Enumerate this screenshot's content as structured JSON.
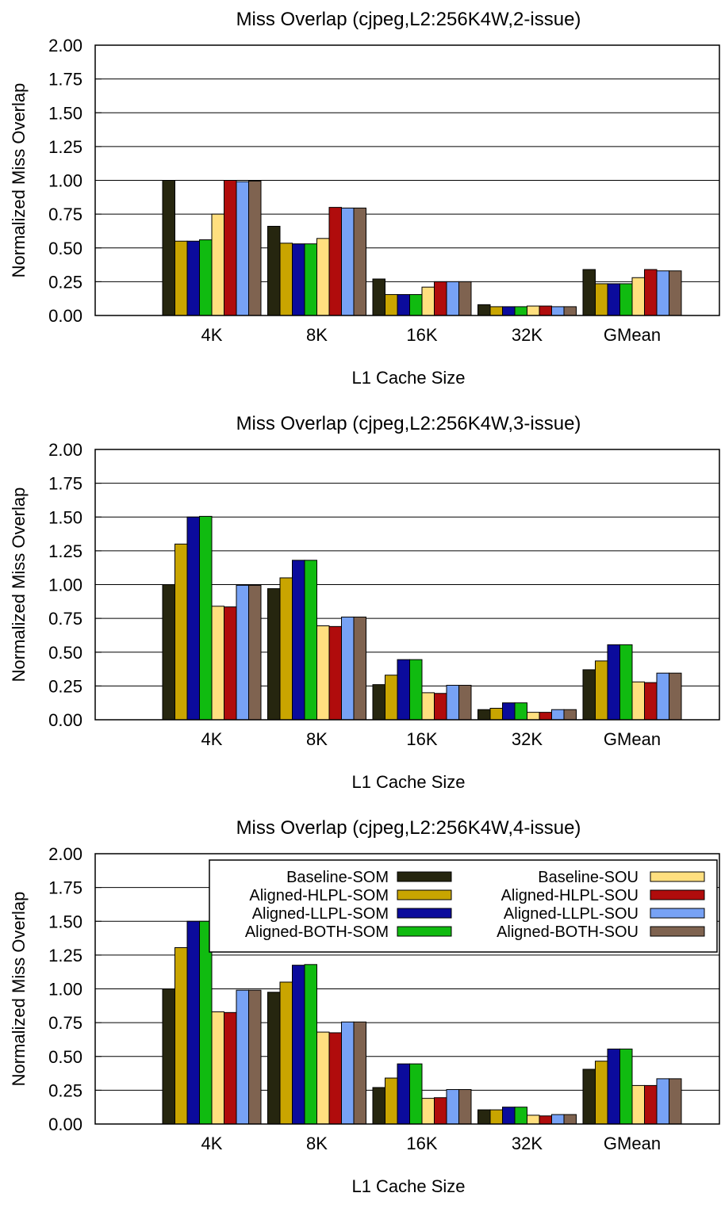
{
  "legend_entries": [
    "Baseline-SOM",
    "Aligned-HLPL-SOM",
    "Aligned-LLPL-SOM",
    "Aligned-BOTH-SOM",
    "Baseline-SOU",
    "Aligned-HLPL-SOU",
    "Aligned-LLPL-SOU",
    "Aligned-BOTH-SOU"
  ],
  "series_colors": [
    "#26260f",
    "#c9a500",
    "#0b0b9c",
    "#10bb10",
    "#ffdf7f",
    "#b00c0c",
    "#77a2f5",
    "#7f6350"
  ],
  "chart_data": [
    {
      "type": "bar",
      "title": "Miss Overlap (cjpeg,L2:256K4W,2-issue)",
      "xlabel": "L1 Cache Size",
      "ylabel": "Normalized Miss Overlap",
      "ylim": [
        0,
        2
      ],
      "yticks": [
        "0.00",
        "0.25",
        "0.50",
        "0.75",
        "1.00",
        "1.25",
        "1.50",
        "1.75",
        "2.00"
      ],
      "grid": true,
      "legend": "none",
      "categories": [
        "4K",
        "8K",
        "16K",
        "32K",
        "GMean"
      ],
      "series": [
        {
          "name": "Baseline-SOM",
          "values": [
            1.0,
            0.66,
            0.27,
            0.08,
            0.34
          ]
        },
        {
          "name": "Aligned-HLPL-SOM",
          "values": [
            0.55,
            0.535,
            0.155,
            0.065,
            0.235
          ]
        },
        {
          "name": "Aligned-LLPL-SOM",
          "values": [
            0.55,
            0.53,
            0.155,
            0.065,
            0.235
          ]
        },
        {
          "name": "Aligned-BOTH-SOM",
          "values": [
            0.56,
            0.53,
            0.155,
            0.065,
            0.235
          ]
        },
        {
          "name": "Baseline-SOU",
          "values": [
            0.75,
            0.57,
            0.21,
            0.07,
            0.28
          ]
        },
        {
          "name": "Aligned-HLPL-SOU",
          "values": [
            1.0,
            0.8,
            0.25,
            0.07,
            0.34
          ]
        },
        {
          "name": "Aligned-LLPL-SOU",
          "values": [
            0.99,
            0.795,
            0.25,
            0.065,
            0.33
          ]
        },
        {
          "name": "Aligned-BOTH-SOU",
          "values": [
            0.995,
            0.795,
            0.25,
            0.065,
            0.33
          ]
        }
      ]
    },
    {
      "type": "bar",
      "title": "Miss Overlap (cjpeg,L2:256K4W,3-issue)",
      "xlabel": "L1 Cache Size",
      "ylabel": "Normalized Miss Overlap",
      "ylim": [
        0,
        2
      ],
      "yticks": [
        "0.00",
        "0.25",
        "0.50",
        "0.75",
        "1.00",
        "1.25",
        "1.50",
        "1.75",
        "2.00"
      ],
      "grid": true,
      "legend": "none",
      "categories": [
        "4K",
        "8K",
        "16K",
        "32K",
        "GMean"
      ],
      "series": [
        {
          "name": "Baseline-SOM",
          "values": [
            1.0,
            0.97,
            0.26,
            0.075,
            0.37
          ]
        },
        {
          "name": "Aligned-HLPL-SOM",
          "values": [
            1.3,
            1.05,
            0.33,
            0.085,
            0.435
          ]
        },
        {
          "name": "Aligned-LLPL-SOM",
          "values": [
            1.5,
            1.18,
            0.445,
            0.125,
            0.555
          ]
        },
        {
          "name": "Aligned-BOTH-SOM",
          "values": [
            1.505,
            1.18,
            0.445,
            0.125,
            0.555
          ]
        },
        {
          "name": "Baseline-SOU",
          "values": [
            0.84,
            0.695,
            0.2,
            0.055,
            0.28
          ]
        },
        {
          "name": "Aligned-HLPL-SOU",
          "values": [
            0.835,
            0.69,
            0.195,
            0.055,
            0.275
          ]
        },
        {
          "name": "Aligned-LLPL-SOU",
          "values": [
            0.995,
            0.76,
            0.255,
            0.075,
            0.345
          ]
        },
        {
          "name": "Aligned-BOTH-SOU",
          "values": [
            0.995,
            0.76,
            0.255,
            0.075,
            0.345
          ]
        }
      ]
    },
    {
      "type": "bar",
      "title": "Miss Overlap (cjpeg,L2:256K4W,4-issue)",
      "xlabel": "L1 Cache Size",
      "ylabel": "Normalized Miss Overlap",
      "ylim": [
        0,
        2
      ],
      "yticks": [
        "0.00",
        "0.25",
        "0.50",
        "0.75",
        "1.00",
        "1.25",
        "1.50",
        "1.75",
        "2.00"
      ],
      "grid": true,
      "legend": "top-right",
      "categories": [
        "4K",
        "8K",
        "16K",
        "32K",
        "GMean"
      ],
      "series": [
        {
          "name": "Baseline-SOM",
          "values": [
            1.0,
            0.975,
            0.27,
            0.105,
            0.405
          ]
        },
        {
          "name": "Aligned-HLPL-SOM",
          "values": [
            1.305,
            1.05,
            0.34,
            0.105,
            0.465
          ]
        },
        {
          "name": "Aligned-LLPL-SOM",
          "values": [
            1.5,
            1.175,
            0.445,
            0.125,
            0.555
          ]
        },
        {
          "name": "Aligned-BOTH-SOM",
          "values": [
            1.5,
            1.18,
            0.445,
            0.125,
            0.555
          ]
        },
        {
          "name": "Baseline-SOU",
          "values": [
            0.83,
            0.68,
            0.19,
            0.065,
            0.285
          ]
        },
        {
          "name": "Aligned-HLPL-SOU",
          "values": [
            0.825,
            0.675,
            0.195,
            0.06,
            0.285
          ]
        },
        {
          "name": "Aligned-LLPL-SOU",
          "values": [
            0.99,
            0.755,
            0.255,
            0.07,
            0.335
          ]
        },
        {
          "name": "Aligned-BOTH-SOU",
          "values": [
            0.99,
            0.755,
            0.255,
            0.07,
            0.335
          ]
        }
      ]
    }
  ]
}
